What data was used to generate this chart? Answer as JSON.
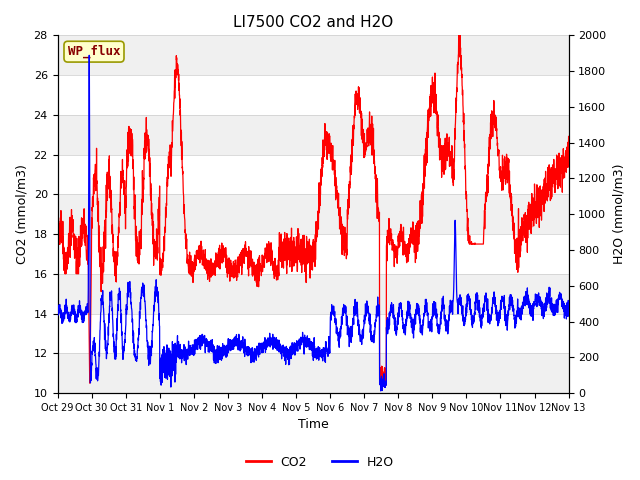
{
  "title": "LI7500 CO2 and H2O",
  "xlabel": "Time",
  "ylabel_left": "CO2 (mmol/m3)",
  "ylabel_right": "H2O (mmol/m3)",
  "ylim_left": [
    10,
    28
  ],
  "ylim_right": [
    0,
    2000
  ],
  "yticks_left": [
    10,
    12,
    14,
    16,
    18,
    20,
    22,
    24,
    26,
    28
  ],
  "yticks_right": [
    0,
    200,
    400,
    600,
    800,
    1000,
    1200,
    1400,
    1600,
    1800,
    2000
  ],
  "xtick_labels": [
    "Oct 29",
    "Oct 30",
    "Oct 31",
    "Nov 1",
    "Nov 2",
    "Nov 3",
    "Nov 4",
    "Nov 5",
    "Nov 6",
    "Nov 7",
    "Nov 8",
    "Nov 9",
    "Nov 10",
    "Nov 11",
    "Nov 12",
    "Nov 13"
  ],
  "co2_color": "#ff0000",
  "h2o_color": "#0000ff",
  "bg_color": "#ffffff",
  "band_light": "#f0f0f0",
  "band_white": "#ffffff",
  "grid_color": "#cccccc",
  "annotation_text": "WP_flux",
  "annotation_bg": "#ffffcc",
  "annotation_border": "#cccc00",
  "annotation_fg": "#880000",
  "legend_labels": [
    "CO2",
    "H2O"
  ],
  "seed": 42
}
